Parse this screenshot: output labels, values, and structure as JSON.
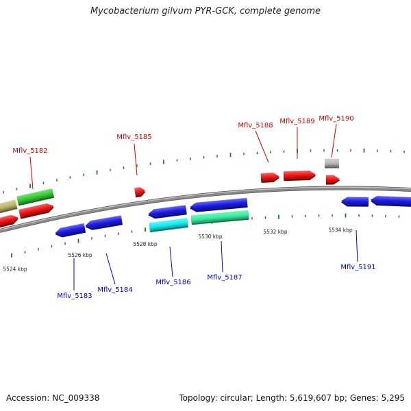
{
  "title": "Mycobacterium gilvum PYR-GCK, complete genome",
  "footer": {
    "accession": "Accession: NC_009338",
    "summary": "Topology: circular; Length: 5,619,607 bp; Genes: 5,295"
  },
  "colors": {
    "top_label": "#cc0000",
    "bottom_label": "#0000bb",
    "red": "#ee1111",
    "blue": "#1a1ae6",
    "green": "#33cc33",
    "khaki": "#bdb76b",
    "cyan": "#11eeee",
    "teal": "#33eea0",
    "gray": "#bbbbbb",
    "backbone": "#8a8a8a",
    "tick": "#1f7a1f"
  },
  "scale": {
    "unit": "kbp",
    "labels": [
      "5524 kbp",
      "5526 kbp",
      "5528 kbp",
      "5530 kbp",
      "5532 kbp",
      "5534 kbp"
    ]
  },
  "gene_labels": [
    {
      "id": "Mflv_5182",
      "strand": "top"
    },
    {
      "id": "Mflv_5185",
      "strand": "top"
    },
    {
      "id": "Mflv_5188",
      "strand": "top"
    },
    {
      "id": "Mflv_5189",
      "strand": "top"
    },
    {
      "id": "Mflv_5190",
      "strand": "top"
    },
    {
      "id": "Mflv_5183",
      "strand": "bottom"
    },
    {
      "id": "Mflv_5184",
      "strand": "bottom"
    },
    {
      "id": "Mflv_5186",
      "strand": "bottom"
    },
    {
      "id": "Mflv_5187",
      "strand": "bottom"
    },
    {
      "id": "Mflv_5191",
      "strand": "bottom"
    }
  ],
  "features": [
    {
      "row": "top-outer",
      "color": "khaki"
    },
    {
      "row": "top-outer",
      "color": "green"
    },
    {
      "row": "top-inner",
      "color": "red"
    },
    {
      "row": "top-inner",
      "color": "red"
    },
    {
      "row": "top-outer",
      "color": "red"
    },
    {
      "row": "top-outer",
      "color": "red"
    },
    {
      "row": "top-outer",
      "color": "red"
    },
    {
      "row": "top-outer",
      "color": "gray"
    },
    {
      "row": "top-inner",
      "color": "red"
    },
    {
      "row": "bottom-inner",
      "color": "blue"
    },
    {
      "row": "bottom-inner",
      "color": "blue"
    },
    {
      "row": "bottom-inner",
      "color": "blue"
    },
    {
      "row": "bottom-outer",
      "color": "cyan"
    },
    {
      "row": "bottom-inner",
      "color": "blue"
    },
    {
      "row": "bottom-outer",
      "color": "teal"
    },
    {
      "row": "bottom-inner",
      "color": "blue"
    },
    {
      "row": "bottom-inner",
      "color": "blue"
    }
  ]
}
